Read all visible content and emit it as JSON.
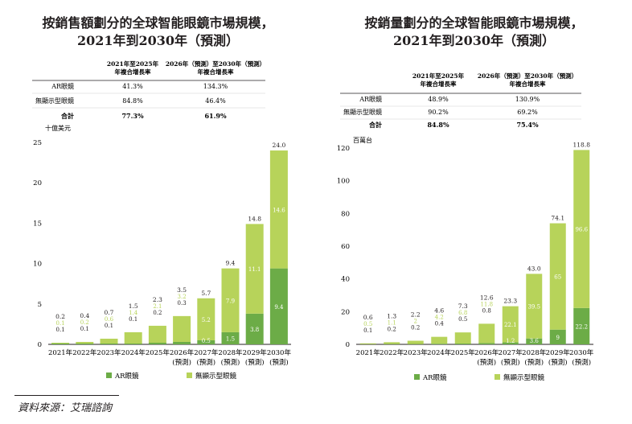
{
  "source": "資料來源：艾瑞諮詢",
  "colors": {
    "ar": "#6cac47",
    "nondisplay": "#b7d35a",
    "text": "#231f20",
    "label_light": "#d9e9a6"
  },
  "charts": [
    {
      "title_line1": "按銷售額劃分的全球智能眼鏡市場規模，",
      "title_line2": "2021年到2030年（預測）",
      "table": {
        "headers": [
          [
            "2021年至2025年",
            "年複合增長率"
          ],
          [
            "2026年（預測）至2030年（預測）",
            "年複合增長率"
          ]
        ],
        "rows": [
          {
            "label": "AR眼鏡",
            "c1": "41.3%",
            "c2": "134.3%",
            "bold": false
          },
          {
            "label": "無顯示型眼鏡",
            "c1": "84.8%",
            "c2": "46.4%",
            "bold": false
          },
          {
            "label": "合計",
            "c1": "77.3%",
            "c2": "61.9%",
            "bold": true
          }
        ]
      },
      "chart_data": {
        "type": "bar",
        "unit": "十億美元",
        "ylim": [
          0,
          25
        ],
        "yticks": [
          0,
          5,
          10,
          15,
          20,
          25
        ],
        "categories": [
          "2021年",
          "2022年",
          "2023年",
          "2024年",
          "2025年",
          "2026年",
          "2027年",
          "2028年",
          "2029年",
          "2030年"
        ],
        "category_sub": [
          "",
          "",
          "",
          "",
          "",
          "(預測)",
          "(預測)",
          "(預測)",
          "(預測)",
          "(預測)"
        ],
        "series": [
          {
            "name": "AR眼鏡",
            "values": [
              0.1,
              0.1,
              0.1,
              0.1,
              0.2,
              0.3,
              0.5,
              1.5,
              3.8,
              9.4
            ]
          },
          {
            "name": "無顯示型眼鏡",
            "values": [
              0.1,
              0.2,
              0.6,
              1.4,
              2.1,
              3.2,
              5.2,
              7.9,
              11.1,
              14.6
            ]
          }
        ],
        "totals": [
          0.2,
          0.4,
          0.7,
          1.5,
          2.3,
          3.5,
          5.7,
          9.4,
          14.8,
          24.0
        ],
        "legend": "bottom"
      }
    },
    {
      "title_line1": "按銷量劃分的全球智能眼鏡市場規模，",
      "title_line2": "2021年到2030年（預測）",
      "table": {
        "headers": [
          [
            "2021年至2025年",
            "年複合增長率"
          ],
          [
            "2026年（預測）至2030年（預測）",
            "年複合增長率"
          ]
        ],
        "rows": [
          {
            "label": "AR眼鏡",
            "c1": "48.9%",
            "c2": "130.9%",
            "bold": false
          },
          {
            "label": "無顯示型眼鏡",
            "c1": "90.2%",
            "c2": "69.2%",
            "bold": false
          },
          {
            "label": "合計",
            "c1": "84.8%",
            "c2": "75.4%",
            "bold": true
          }
        ]
      },
      "chart_data": {
        "type": "bar",
        "unit": "百萬台",
        "ylim": [
          0,
          120
        ],
        "yticks": [
          0,
          20,
          40,
          60,
          80,
          100,
          120
        ],
        "categories": [
          "2021年",
          "2022年",
          "2023年",
          "2024年",
          "2025年",
          "2026年",
          "2027年",
          "2028年",
          "2029年",
          "2030年"
        ],
        "category_sub": [
          "",
          "",
          "",
          "",
          "",
          "(預測)",
          "(預測)",
          "(預測)",
          "(預測)",
          "(預測)"
        ],
        "series": [
          {
            "name": "AR眼鏡",
            "values": [
              0.1,
              0.2,
              0.2,
              0.4,
              0.5,
              0.8,
              1.2,
              3.6,
              9.0,
              22.2
            ]
          },
          {
            "name": "無顯示型眼鏡",
            "values": [
              0.5,
              1.1,
              2.0,
              4.2,
              6.8,
              11.8,
              22.1,
              39.5,
              65.0,
              96.6
            ]
          }
        ],
        "totals": [
          0.6,
          1.3,
          2.2,
          4.6,
          7.3,
          12.6,
          23.3,
          43.0,
          74.1,
          118.8
        ],
        "legend": "bottom"
      }
    }
  ]
}
